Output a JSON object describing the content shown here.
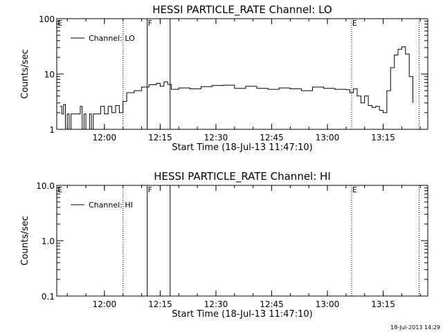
{
  "chart_data": [
    {
      "type": "line",
      "title": "HESSI PARTICLE_RATE Channel: LO",
      "xlabel": "Start Time (18-Jul-13 11:47:10)",
      "ylabel": "Counts/sec",
      "yscale": "log",
      "ylim": [
        1,
        100
      ],
      "xlim": [
        "11:47:10",
        "13:27:00"
      ],
      "x_tick_labels": [
        "12:00",
        "12:15",
        "12:30",
        "12:45",
        "13:00",
        "13:15"
      ],
      "y_tick_labels": [
        "1",
        "10",
        "100"
      ],
      "legend": {
        "entries": [
          "Channel: LO"
        ],
        "position": "top-left"
      },
      "flag_markers": [
        {
          "label": "E",
          "time": "11:47:10",
          "style": "none"
        },
        {
          "label": "",
          "time": "12:05:00",
          "style": "dotted"
        },
        {
          "label": "F",
          "time": "12:11:30",
          "style": "solid"
        },
        {
          "label": "",
          "time": "12:17:40",
          "style": "solid"
        },
        {
          "label": "E",
          "time": "13:06:30",
          "style": "dotted"
        },
        {
          "label": "",
          "time": "13:24:40",
          "style": "dotted"
        }
      ],
      "series": [
        {
          "name": "Channel: LO",
          "x": [
            "11:48:00",
            "11:48:30",
            "11:49:00",
            "11:49:30",
            "11:50:00",
            "11:50:30",
            "11:51:00",
            "11:52:00",
            "11:53:00",
            "11:53:30",
            "11:54:00",
            "11:54:30",
            "11:55:00",
            "11:56:00",
            "11:56:30",
            "11:57:00",
            "11:58:00",
            "11:59:00",
            "12:00:00",
            "12:01:00",
            "12:02:00",
            "12:03:00",
            "12:04:00",
            "12:05:00",
            "12:06:00",
            "12:08:00",
            "12:10:00",
            "12:12:00",
            "12:14:00",
            "12:15:00",
            "12:16:00",
            "12:17:00",
            "12:18:00",
            "12:20:00",
            "12:23:00",
            "12:26:00",
            "12:29:00",
            "12:32:00",
            "12:35:00",
            "12:38:00",
            "12:41:00",
            "12:44:00",
            "12:47:00",
            "12:50:00",
            "12:53:00",
            "12:56:00",
            "12:59:00",
            "13:02:00",
            "13:05:00",
            "13:06:00",
            "13:07:00",
            "13:08:00",
            "13:09:00",
            "13:10:00",
            "13:11:00",
            "13:12:00",
            "13:13:00",
            "13:14:00",
            "13:15:00",
            "13:16:00",
            "13:17:00",
            "13:18:00",
            "13:19:00",
            "13:20:00",
            "13:21:00",
            "13:22:00",
            "13:23:00"
          ],
          "y": [
            2.6,
            1.9,
            2.8,
            1.0,
            1.9,
            1.0,
            1.9,
            1.9,
            1.9,
            2.6,
            1.0,
            1.9,
            1.0,
            1.9,
            1.0,
            1.9,
            1.9,
            2.6,
            1.9,
            2.6,
            2.0,
            2.7,
            2.0,
            3.2,
            4.6,
            5.0,
            5.8,
            6.4,
            6.8,
            6.0,
            7.2,
            6.5,
            5.3,
            5.6,
            5.4,
            5.9,
            6.2,
            6.3,
            5.5,
            6.0,
            5.5,
            5.3,
            5.6,
            5.4,
            5.0,
            5.8,
            5.5,
            5.3,
            5.2,
            4.6,
            5.4,
            4.0,
            3.0,
            4.0,
            2.7,
            2.5,
            2.6,
            2.2,
            2.0,
            5.0,
            13.0,
            22.0,
            28.0,
            31.0,
            23.0,
            9.0,
            3.0
          ]
        }
      ]
    },
    {
      "type": "line",
      "title": "HESSI PARTICLE_RATE Channel: HI",
      "xlabel": "Start Time (18-Jul-13 11:47:10)",
      "ylabel": "Counts/sec",
      "yscale": "log",
      "ylim": [
        0.1,
        10
      ],
      "xlim": [
        "11:47:10",
        "13:27:00"
      ],
      "x_tick_labels": [
        "12:00",
        "12:15",
        "12:30",
        "12:45",
        "13:00",
        "13:15"
      ],
      "y_tick_labels": [
        "0.1",
        "1.0",
        "10.0"
      ],
      "legend": {
        "entries": [
          "Channel: HI"
        ],
        "position": "top-left"
      },
      "flag_markers": [
        {
          "label": "E",
          "time": "11:47:10",
          "style": "none"
        },
        {
          "label": "",
          "time": "12:05:00",
          "style": "dotted"
        },
        {
          "label": "F",
          "time": "12:11:30",
          "style": "solid"
        },
        {
          "label": "",
          "time": "12:17:40",
          "style": "solid"
        },
        {
          "label": "E",
          "time": "13:06:30",
          "style": "dotted"
        },
        {
          "label": "",
          "time": "13:24:40",
          "style": "dotted"
        }
      ],
      "series": [
        {
          "name": "Channel: HI",
          "x": [],
          "y": []
        }
      ]
    }
  ],
  "footer": {
    "timestamp": "18-Jul-2013 14:29"
  }
}
